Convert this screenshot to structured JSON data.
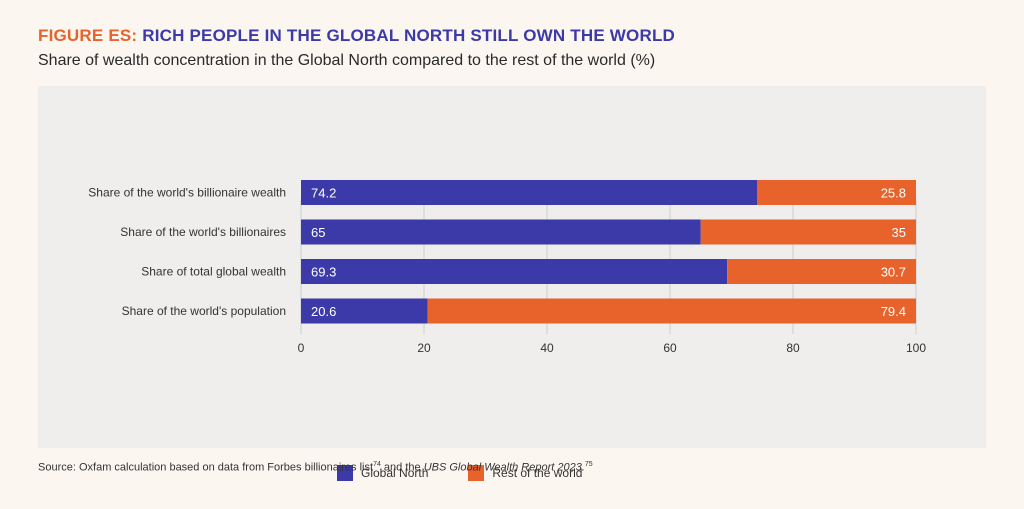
{
  "figure": {
    "prefix": "FIGURE ES:",
    "title": "RICH PEOPLE IN THE GLOBAL NORTH STILL OWN THE WORLD",
    "subtitle": "Share of wealth concentration in the Global North compared to the rest of the world (%)"
  },
  "source": {
    "text_before": "Source: Oxfam calculation based on data from Forbes billionaires list",
    "sup1": "74",
    "text_mid": " and the ",
    "report": "UBS Global Wealth Report 2023.",
    "sup2": "75"
  },
  "chart_data": {
    "type": "bar",
    "orientation": "horizontal",
    "stacked": true,
    "categories": [
      "Share of the world's billionaire wealth",
      "Share of the world's billionaires",
      "Share of total global wealth",
      "Share of the world's population"
    ],
    "series": [
      {
        "name": "Global North",
        "values": [
          74.2,
          65,
          69.3,
          20.6
        ],
        "color": "#3b3aa8"
      },
      {
        "name": "Rest of the world",
        "values": [
          25.8,
          35,
          30.7,
          79.4
        ],
        "color": "#e8632b"
      }
    ],
    "xlim": [
      0,
      100
    ],
    "xticks": [
      0,
      20,
      40,
      60,
      80,
      100
    ],
    "grid": true,
    "legend_position": "bottom-left"
  }
}
